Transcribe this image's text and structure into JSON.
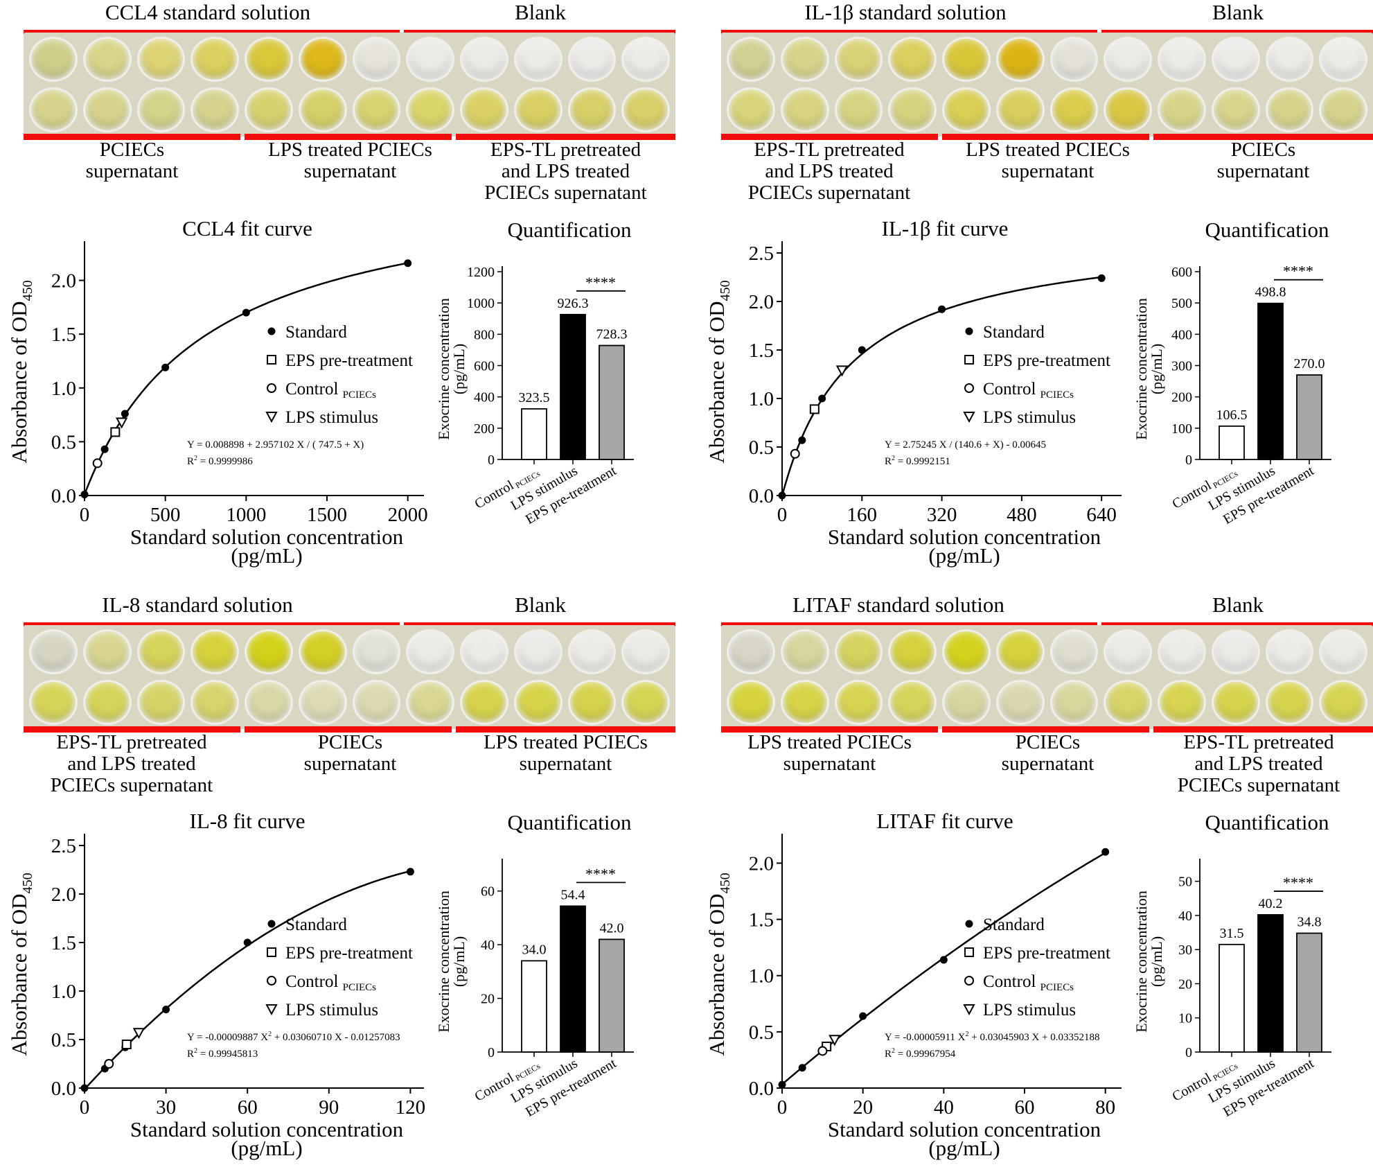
{
  "chart_data": [
    {
      "type": "scatter",
      "panel": "CCL4",
      "plate": {
        "standard_label": "CCL4 standard solution",
        "blank_label": "Blank",
        "top_row_colors": [
          "#cfcf8c",
          "#d9d58a",
          "#dcd474",
          "#dbd160",
          "#d9c83a",
          "#dcb81a",
          "#e6e4da",
          "#eceae6",
          "#eceae6",
          "#ecebe7",
          "#edebe8",
          "#ecebe7"
        ],
        "bottom_row_colors": [
          "#d6d48c",
          "#d6d48c",
          "#d4d38a",
          "#d5d38d",
          "#d7d270",
          "#d5d068",
          "#d6d370",
          "#dad56a",
          "#dad266",
          "#d8d064",
          "#d7d068",
          "#d8d06a"
        ],
        "groups": [
          {
            "lines": [
              "PCIECs",
              "supernatant"
            ]
          },
          {
            "lines": [
              "LPS treated PCIECs",
              "supernatant"
            ]
          },
          {
            "lines": [
              "EPS-TL pretreated",
              "and LPS treated",
              "PCIECs supernatant"
            ]
          }
        ]
      },
      "fit_curve": {
        "title": "CCL4 fit curve",
        "ylabel": "Absorbance of OD",
        "ylabel_sub": "450",
        "xlabel": "Standard solution concentration",
        "xlabel_unit": "(pg/mL)",
        "xlim": [
          0,
          2100
        ],
        "ylim": [
          0,
          2.3
        ],
        "xticks": [
          0,
          500,
          1000,
          1500,
          2000
        ],
        "xtick_labels": [
          "0",
          "500",
          "1000",
          "1500",
          "2000"
        ],
        "yticks": [
          0,
          0.5,
          1.0,
          1.5,
          2.0
        ],
        "ytick_labels": [
          "0.0",
          "0.5",
          "1.0",
          "1.5",
          "2.0"
        ],
        "equation": "Y = 0.008898 + 2.957102 X / ( 747.5 + X)",
        "r2_label": "R",
        "r2_sup": "2",
        "r2_value": " = 0.9999986",
        "model": {
          "kind": "hyper",
          "a": 0.008898,
          "b": 2.957102,
          "c": 747.5
        },
        "standard_points": [
          [
            0,
            0.01
          ],
          [
            125,
            0.43
          ],
          [
            250,
            0.76
          ],
          [
            500,
            1.19
          ],
          [
            1000,
            1.7
          ],
          [
            2000,
            2.16
          ]
        ],
        "eps_point": [
          190,
          0.59
        ],
        "control_point": [
          80,
          0.3
        ],
        "lps_point": [
          230,
          0.68
        ],
        "legend": {
          "standard": "Standard",
          "eps": "EPS pre-treatment",
          "control": "Control",
          "control_sub": "PCIECs",
          "lps": "LPS stimulus"
        }
      },
      "quant": {
        "title": "Quantification",
        "ylabel_line1": "Exocrine concentration",
        "ylabel_line2": "(pg/mL)",
        "ylim": [
          0,
          1200
        ],
        "yticks": [
          0,
          200,
          400,
          600,
          800,
          1000,
          1200
        ],
        "ytick_labels": [
          "0",
          "200",
          "400",
          "600",
          "800",
          "1000",
          "1200"
        ],
        "categories": [
          "Control",
          "LPS stimulus",
          "EPS pre-treatment"
        ],
        "category_sub": "PCIECs",
        "values": [
          323.5,
          926.3,
          728.3
        ],
        "value_labels": [
          "323.5",
          "926.3",
          "728.3"
        ],
        "bar_colors": [
          "#ffffff",
          "#000000",
          "#a6a6a6"
        ],
        "significance": "****"
      }
    },
    {
      "type": "scatter",
      "panel": "IL-1β",
      "plate": {
        "standard_label": "IL-1β standard solution",
        "blank_label": "Blank",
        "top_row_colors": [
          "#d2d092",
          "#d8d48a",
          "#dad276",
          "#dbcf5e",
          "#d9c73a",
          "#dcb515",
          "#e4e2d8",
          "#eceae6",
          "#ecebe7",
          "#ecebe8",
          "#ebeae6",
          "#ecebe7"
        ],
        "bottom_row_colors": [
          "#d8d57a",
          "#d8d480",
          "#d6d482",
          "#d6d380",
          "#d9cf55",
          "#d8cf5c",
          "#dacd4c",
          "#dac844",
          "#d8d58a",
          "#d8d58c",
          "#d6d48a",
          "#d6d48c"
        ],
        "groups": [
          {
            "lines": [
              "EPS-TL pretreated",
              "and LPS treated",
              "PCIECs supernatant"
            ]
          },
          {
            "lines": [
              "LPS treated PCIECs",
              "supernatant"
            ]
          },
          {
            "lines": [
              "PCIECs",
              "supernatant"
            ]
          }
        ]
      },
      "fit_curve": {
        "title": "IL-1β fit curve",
        "ylabel": "Absorbance of OD",
        "ylabel_sub": "450",
        "xlabel": "Standard solution concentration",
        "xlabel_unit": "(pg/mL)",
        "xlim": [
          0,
          680
        ],
        "ylim": [
          0,
          2.55
        ],
        "xticks": [
          0,
          160,
          320,
          480,
          640
        ],
        "xtick_labels": [
          "0",
          "160",
          "320",
          "480",
          "640"
        ],
        "yticks": [
          0,
          0.5,
          1.0,
          1.5,
          2.0,
          2.5
        ],
        "ytick_labels": [
          "0.0",
          "0.5",
          "1.0",
          "1.5",
          "2.0",
          "2.5"
        ],
        "equation": "Y = 2.75245 X / (140.6 + X) - 0.00645",
        "r2_label": "R",
        "r2_sup": "2",
        "r2_value": " = 0.9992151",
        "model": {
          "kind": "hyper",
          "a": -0.00645,
          "b": 2.75245,
          "c": 140.6
        },
        "standard_points": [
          [
            0,
            0.0
          ],
          [
            40,
            0.57
          ],
          [
            80,
            1.0
          ],
          [
            160,
            1.5
          ],
          [
            320,
            1.92
          ],
          [
            640,
            2.24
          ]
        ],
        "eps_point": [
          65,
          0.89
        ],
        "control_point": [
          26,
          0.43
        ],
        "lps_point": [
          120,
          1.29
        ],
        "legend": {
          "standard": "Standard",
          "eps": "EPS pre-treatment",
          "control": "Control",
          "control_sub": "PCIECs",
          "lps": "LPS stimulus"
        }
      },
      "quant": {
        "title": "Quantification",
        "ylabel_line1": "Exocrine concentration",
        "ylabel_line2": "(pg/mL)",
        "ylim": [
          0,
          600
        ],
        "yticks": [
          0,
          100,
          200,
          300,
          400,
          500,
          600
        ],
        "ytick_labels": [
          "0",
          "100",
          "200",
          "300",
          "400",
          "500",
          "600"
        ],
        "categories": [
          "Control",
          "LPS stimulus",
          "EPS pre-treatment"
        ],
        "category_sub": "PCIECs",
        "values": [
          106.5,
          498.8,
          270.0
        ],
        "value_labels": [
          "106.5",
          "498.8",
          "270.0"
        ],
        "bar_colors": [
          "#ffffff",
          "#000000",
          "#a6a6a6"
        ],
        "significance": "****"
      }
    },
    {
      "type": "scatter",
      "panel": "IL-8",
      "plate": {
        "standard_label": "IL-8 standard solution",
        "blank_label": "Blank",
        "top_row_colors": [
          "#d7d6c4",
          "#d8d690",
          "#d6d35a",
          "#d6d23c",
          "#d3d21a",
          "#d4cf24",
          "#e2e1d6",
          "#eceae6",
          "#ecebe7",
          "#ebeae7",
          "#ecebe7",
          "#ebeae6"
        ],
        "bottom_row_colors": [
          "#d6d55a",
          "#d5d45a",
          "#d6d468",
          "#d6d46c",
          "#d9d8a8",
          "#dcdbb4",
          "#dbdab0",
          "#d9d792",
          "#d6d44c",
          "#d6d44a",
          "#d5d34c",
          "#d6d454"
        ],
        "groups": [
          {
            "lines": [
              "EPS-TL pretreated",
              "and LPS treated",
              "PCIECs supernatant"
            ]
          },
          {
            "lines": [
              "PCIECs",
              "supernatant"
            ]
          },
          {
            "lines": [
              "LPS treated PCIECs",
              "supernatant"
            ]
          }
        ]
      },
      "fit_curve": {
        "title": "IL-8 fit curve",
        "ylabel": "Absorbance of OD",
        "ylabel_sub": "450",
        "xlabel": "Standard solution concentration",
        "xlabel_unit": "(pg/mL)",
        "xlim": [
          0,
          125
        ],
        "ylim": [
          0,
          2.55
        ],
        "xticks": [
          0,
          30,
          60,
          90,
          120
        ],
        "xtick_labels": [
          "0",
          "30",
          "60",
          "90",
          "120"
        ],
        "yticks": [
          0,
          0.5,
          1.0,
          1.5,
          2.0,
          2.5
        ],
        "ytick_labels": [
          "0.0",
          "0.5",
          "1.0",
          "1.5",
          "2.0",
          "2.5"
        ],
        "equation": "Y = -0.00009887 X",
        "equation_sup": "2",
        "equation_tail": " + 0.03060710 X - 0.01257083",
        "r2_label": "R",
        "r2_sup": "2",
        "r2_value": " = 0.99945813",
        "model": {
          "kind": "quad",
          "a2": -9.887e-05,
          "a1": 0.0306071,
          "a0": -0.01257083
        },
        "standard_points": [
          [
            0,
            0.0
          ],
          [
            7.5,
            0.2
          ],
          [
            15,
            0.42
          ],
          [
            30,
            0.81
          ],
          [
            60,
            1.5
          ],
          [
            120,
            2.23
          ]
        ],
        "eps_point": [
          15.5,
          0.45
        ],
        "control_point": [
          9,
          0.25
        ],
        "lps_point": [
          20,
          0.57
        ],
        "legend": {
          "standard": "Standard",
          "eps": "EPS pre-treatment",
          "control": "Control",
          "control_sub": "PCIECs",
          "lps": "LPS stimulus"
        }
      },
      "quant": {
        "title": "Quantification",
        "ylabel_line1": "Exocrine concentration",
        "ylabel_line2": "(pg/mL)",
        "ylim": [
          0,
          70
        ],
        "yticks": [
          0,
          20,
          40,
          60
        ],
        "ytick_labels": [
          "0",
          "20",
          "40",
          "60"
        ],
        "categories": [
          "Control",
          "LPS stimulus",
          "EPS pre-treatment"
        ],
        "category_sub": "PCIECs",
        "values": [
          34.0,
          54.4,
          42.0
        ],
        "value_labels": [
          "34.0",
          "54.4",
          "42.0"
        ],
        "bar_colors": [
          "#ffffff",
          "#000000",
          "#a6a6a6"
        ],
        "significance": "****"
      }
    },
    {
      "type": "scatter",
      "panel": "LITAF",
      "plate": {
        "standard_label": "LITAF standard solution",
        "blank_label": "Blank",
        "top_row_colors": [
          "#d8d6c6",
          "#d7d69e",
          "#d5d35e",
          "#d4d23e",
          "#d4d21e",
          "#d5d23c",
          "#e0dfcf",
          "#eceae6",
          "#ecebe7",
          "#ebeae7",
          "#ecebe7",
          "#ebeae6"
        ],
        "bottom_row_colors": [
          "#d5d43c",
          "#d6d448",
          "#d6d450",
          "#d6d45a",
          "#d8d6a0",
          "#dad8b0",
          "#d9d79e",
          "#d7d568",
          "#d6d450",
          "#d6d44c",
          "#d6d44e",
          "#d6d452"
        ],
        "groups": [
          {
            "lines": [
              "LPS treated PCIECs",
              "supernatant"
            ]
          },
          {
            "lines": [
              "PCIECs",
              "supernatant"
            ]
          },
          {
            "lines": [
              "EPS-TL pretreated",
              "and LPS treated",
              "PCIECs supernatant"
            ]
          }
        ]
      },
      "fit_curve": {
        "title": "LITAF fit curve",
        "ylabel": "Absorbance of OD",
        "ylabel_sub": "450",
        "xlabel": "Standard solution concentration",
        "xlabel_unit": "(pg/mL)",
        "xlim": [
          0,
          84
        ],
        "ylim": [
          0,
          2.2
        ],
        "xticks": [
          0,
          20,
          40,
          60,
          80
        ],
        "xtick_labels": [
          "0",
          "20",
          "40",
          "60",
          "80"
        ],
        "yticks": [
          0,
          0.5,
          1.0,
          1.5,
          2.0
        ],
        "ytick_labels": [
          "0.0",
          "0.5",
          "1.0",
          "1.5",
          "2.0"
        ],
        "equation": "Y = -0.00005911 X",
        "equation_sup": "2",
        "equation_tail": " + 0.03045903 X + 0.03352188",
        "r2_label": "R",
        "r2_sup": "2",
        "r2_value": " = 0.99967954",
        "model": {
          "kind": "quad",
          "a2": -5.911e-05,
          "a1": 0.03045903,
          "a0": 0.03352188
        },
        "standard_points": [
          [
            0,
            0.03
          ],
          [
            5,
            0.18
          ],
          [
            10,
            0.34
          ],
          [
            20,
            0.64
          ],
          [
            40,
            1.14
          ],
          [
            80,
            2.1
          ]
        ],
        "eps_point": [
          11,
          0.37
        ],
        "control_point": [
          10,
          0.33
        ],
        "lps_point": [
          13,
          0.43
        ],
        "legend": {
          "standard": "Standard",
          "eps": "EPS pre-treatment",
          "control": "Control",
          "control_sub": "PCIECs",
          "lps": "LPS stimulus"
        }
      },
      "quant": {
        "title": "Quantification",
        "ylabel_line1": "Exocrine concentration",
        "ylabel_line2": "(pg/mL)",
        "ylim": [
          0,
          55
        ],
        "yticks": [
          0,
          10,
          20,
          30,
          40,
          50
        ],
        "ytick_labels": [
          "0",
          "10",
          "20",
          "30",
          "40",
          "50"
        ],
        "categories": [
          "Control",
          "LPS stimulus",
          "EPS pre-treatment"
        ],
        "category_sub": "PCIECs",
        "values": [
          31.5,
          40.2,
          34.8
        ],
        "value_labels": [
          "31.5",
          "40.2",
          "34.8"
        ],
        "bar_colors": [
          "#ffffff",
          "#000000",
          "#a6a6a6"
        ],
        "significance": "****"
      }
    }
  ]
}
